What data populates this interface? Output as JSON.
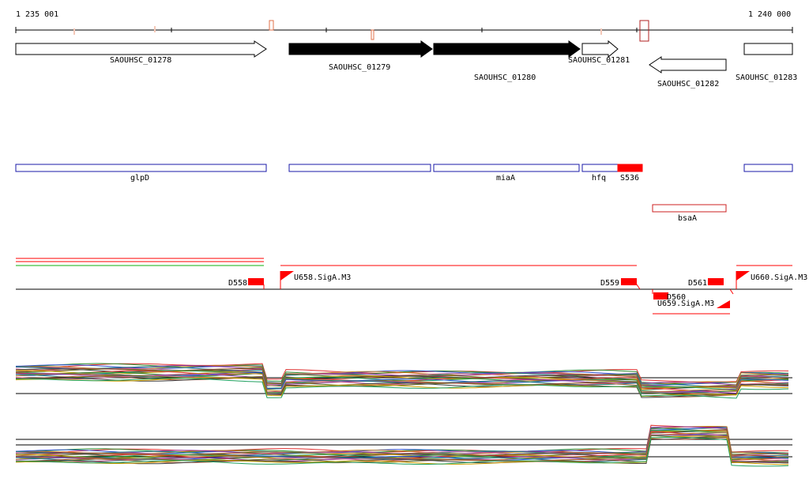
{
  "coords": {
    "start": "1 235 001",
    "end": "1 240 000"
  },
  "colors": {
    "gene_fill": "#000000",
    "outline": "#1a1aa8",
    "red": "#ff0000",
    "orange": "#e0704a",
    "green": "#10b010"
  },
  "genes": [
    {
      "name": "SAOUHSC_01278",
      "strand": "+",
      "filled": false
    },
    {
      "name": "SAOUHSC_01279",
      "strand": "+",
      "filled": true
    },
    {
      "name": "SAOUHSC_01280",
      "strand": "+",
      "filled": true
    },
    {
      "name": "SAOUHSC_01281",
      "strand": "+",
      "filled": false
    },
    {
      "name": "SAOUHSC_01282",
      "strand": "-",
      "filled": false
    },
    {
      "name": "SAOUHSC_01283",
      "strand": "+",
      "filled": false
    }
  ],
  "gene_names": [
    "glpD",
    "",
    "miaA",
    "hfq",
    "S536",
    ""
  ],
  "other_features": [
    "bsaA"
  ],
  "promoters": [
    "U658.SigA.M3",
    "U659.SigA.M3",
    "U660.SigA.M3"
  ],
  "downregions": [
    "D558",
    "D559",
    "D560",
    "D561"
  ]
}
